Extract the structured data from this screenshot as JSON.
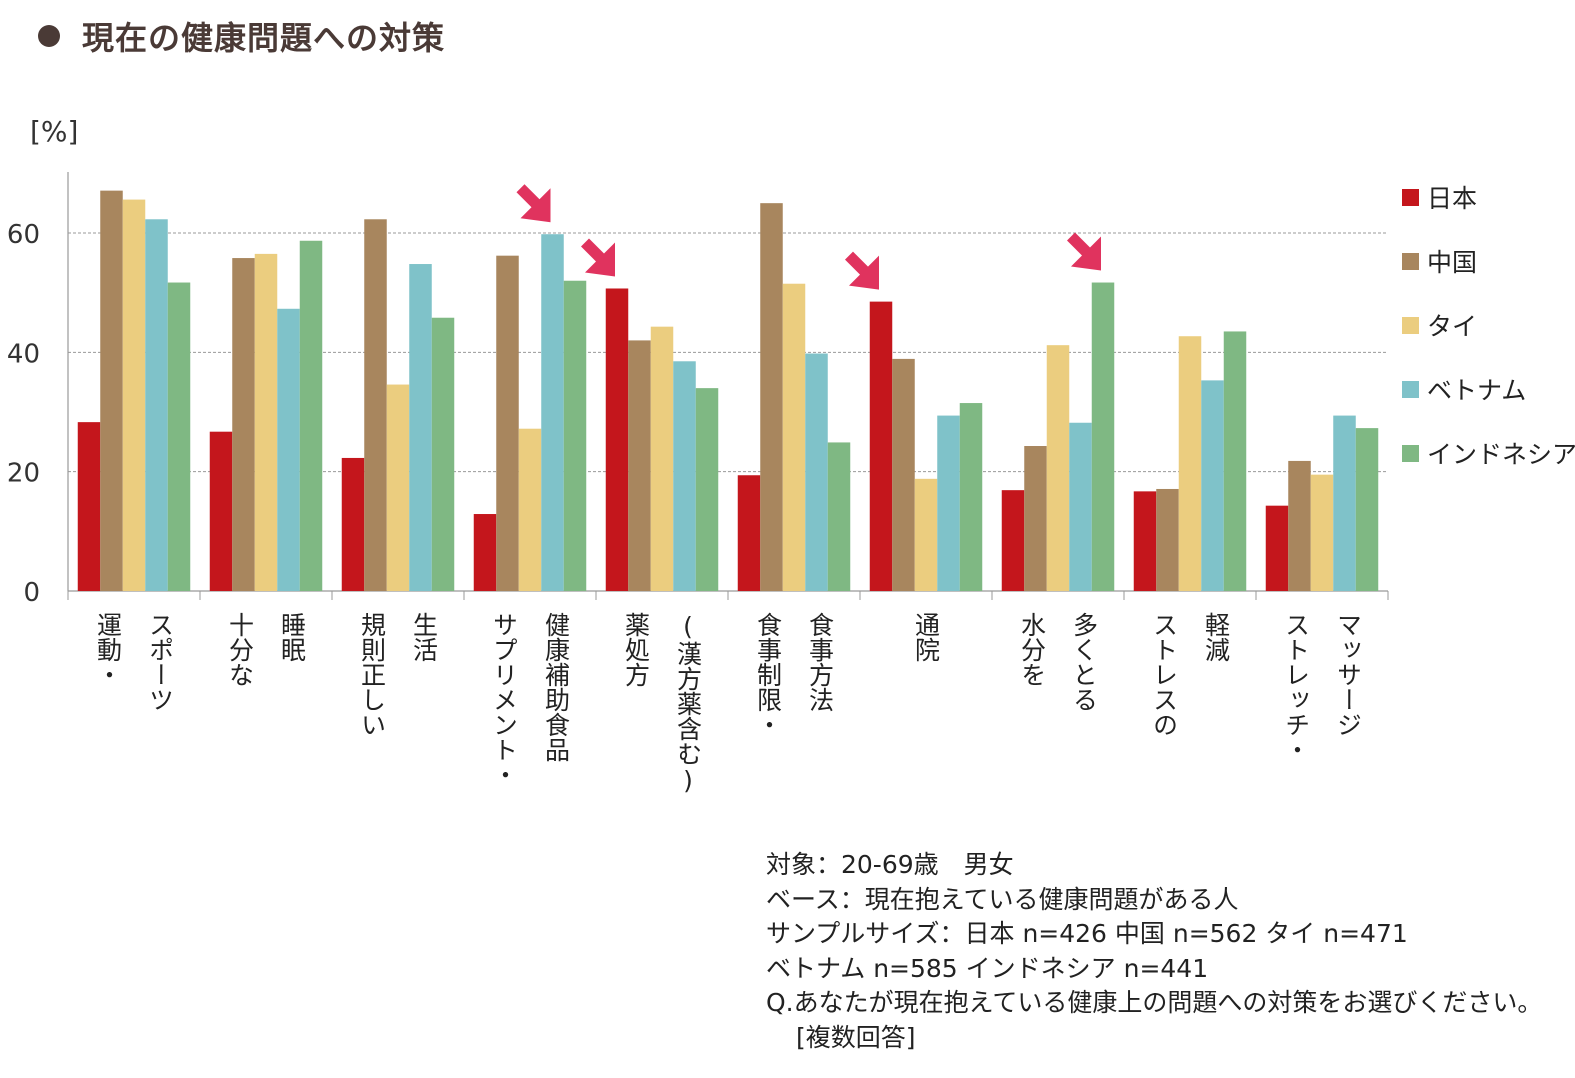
{
  "page": {
    "title": "現在の健康問題への対策"
  },
  "chart_data": {
    "type": "bar",
    "unit_label": "[%]",
    "ylim": [
      0,
      70
    ],
    "yticks": [
      0,
      20,
      40,
      60
    ],
    "grid": true,
    "legend_position": "right",
    "categories": [
      {
        "lines": [
          "運動・",
          "スポーツ"
        ]
      },
      {
        "lines": [
          "十分な",
          "睡眠"
        ]
      },
      {
        "lines": [
          "規則正しい",
          "生活"
        ]
      },
      {
        "lines": [
          "サプリメント・",
          "健康補助食品"
        ]
      },
      {
        "lines": [
          "薬処方",
          "(漢方薬含む)"
        ]
      },
      {
        "lines": [
          "食事制限・",
          "食事方法"
        ]
      },
      {
        "lines": [
          "通院"
        ]
      },
      {
        "lines": [
          "水分を",
          "多くとる"
        ]
      },
      {
        "lines": [
          "ストレスの",
          "軽減"
        ]
      },
      {
        "lines": [
          "ストレッチ・",
          "マッサージ"
        ]
      }
    ],
    "series": [
      {
        "name": "日本",
        "color": "#c4161c",
        "values": [
          28.3,
          26.7,
          22.3,
          12.9,
          50.7,
          19.4,
          48.5,
          16.9,
          16.7,
          14.3
        ]
      },
      {
        "name": "中国",
        "color": "#a8865e",
        "values": [
          67.1,
          55.8,
          62.3,
          56.2,
          42.0,
          65.0,
          38.9,
          24.3,
          17.1,
          21.8
        ]
      },
      {
        "name": "タイ",
        "color": "#ebcd7f",
        "values": [
          65.6,
          56.5,
          34.6,
          27.2,
          44.3,
          51.5,
          18.8,
          41.2,
          42.7,
          19.5
        ]
      },
      {
        "name": "ベトナム",
        "color": "#7fc2c9",
        "values": [
          62.3,
          47.3,
          54.8,
          59.8,
          38.5,
          39.8,
          29.4,
          28.2,
          35.3,
          29.4
        ]
      },
      {
        "name": "インドネシア",
        "color": "#7fb883",
        "values": [
          51.7,
          58.7,
          45.8,
          52.0,
          34.0,
          24.9,
          31.5,
          51.7,
          43.5,
          27.3
        ]
      }
    ],
    "highlight_arrows": [
      {
        "category_index": 3,
        "series": "ベトナム"
      },
      {
        "category_index": 4,
        "series": "日本"
      },
      {
        "category_index": 6,
        "series": "日本"
      },
      {
        "category_index": 7,
        "series": "インドネシア"
      }
    ],
    "arrow_color": "#e0335e"
  },
  "notes": {
    "line1": "対象：20-69歳　男女",
    "line2": "ベース：現在抱えている健康問題がある人",
    "line3": "サンプルサイズ：日本 n=426 中国 n=562 タイ n=471",
    "line4": "ベトナム n=585 インドネシア n=441",
    "line5": "Q.あなたが現在抱えている健康上の問題への対策をお選びください。",
    "line6": "[複数回答]"
  }
}
